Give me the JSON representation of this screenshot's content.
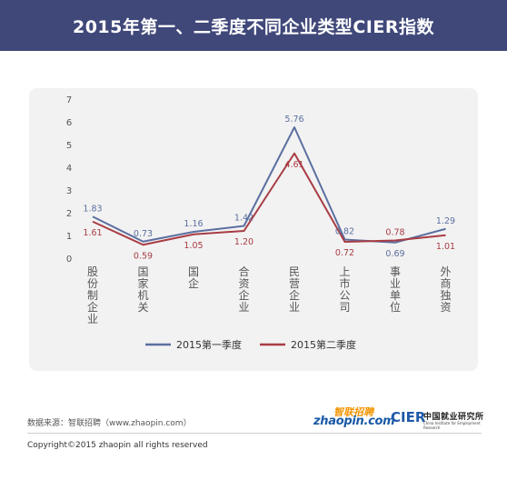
{
  "header": {
    "title": "2015年第一、二季度不同企业类型CIER指数"
  },
  "chart_data": {
    "type": "line",
    "categories": [
      "股份制企业",
      "国家机关",
      "国企",
      "合资企业",
      "民营企业",
      "上市公司",
      "事业单位",
      "外商独资"
    ],
    "series": [
      {
        "name": "2015第一季度",
        "color": "#5b6fa0",
        "values": [
          1.83,
          0.73,
          1.16,
          1.42,
          5.76,
          0.82,
          0.69,
          1.29
        ],
        "labels": [
          "1.83",
          "0.73",
          "1.16",
          "1.42",
          "5.76",
          "0.82",
          "0.69",
          "1.29"
        ]
      },
      {
        "name": "2015第二季度",
        "color": "#a83c44",
        "values": [
          1.61,
          0.59,
          1.05,
          1.2,
          4.61,
          0.72,
          0.78,
          1.01
        ],
        "labels": [
          "1.61",
          "0.59",
          "1.05",
          "1.20",
          "4.61",
          "0.72",
          "0.78",
          "1.01"
        ]
      }
    ],
    "ylim": [
      0,
      7
    ],
    "yticks": [
      "0",
      "1",
      "2",
      "3",
      "4",
      "5",
      "6",
      "7"
    ],
    "grid": false,
    "legend": "bottom",
    "xlabel": "",
    "ylabel": ""
  },
  "footer": {
    "source": "数据来源：智联招聘（www.zhaopin.com）",
    "copyright": "Copyright©2015 zhaopin all rights reserved",
    "logo_zhaopin_cn": "智联招聘",
    "logo_zhaopin_en": "zhaopin.com",
    "logo_cier": "CIER",
    "logo_cier_name": "中国就业研究所",
    "logo_cier_sub": "China Institute for Employment Research"
  },
  "colors": {
    "title_bar": "#40487a",
    "card_bg": "#f2f2f2",
    "axis_text": "#555555"
  }
}
